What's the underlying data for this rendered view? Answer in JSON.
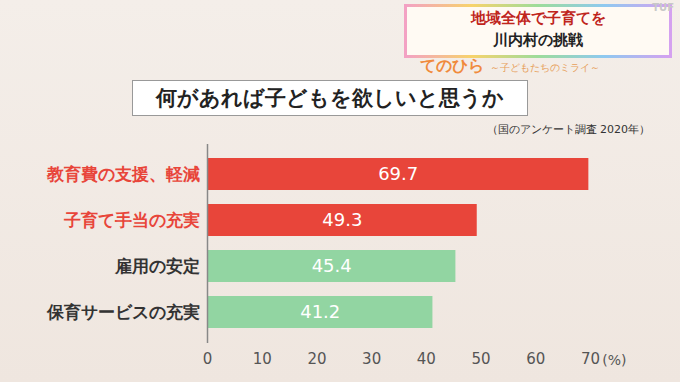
{
  "banner": [
    "地域全体で子育てを",
    "川内村の挑戦"
  ],
  "channel": "TUF",
  "logo": "てのひら",
  "logo_subtitle": "～子どもたちのミライ～",
  "chart_data": {
    "type": "bar",
    "orientation": "horizontal",
    "title": "何があれば子どもを欲しいと思うか",
    "subtitle": "（国のアンケート調査 2020年）",
    "categories": [
      "教育費の支援、軽減",
      "子育て手当の充実",
      "雇用の安定",
      "保育サービスの充実"
    ],
    "values": [
      69.7,
      49.3,
      45.4,
      41.2
    ],
    "colors": [
      "#e8453a",
      "#e8453a",
      "#92d5a2",
      "#92d5a2"
    ],
    "xlabel": "(%)",
    "xlim": [
      0,
      70
    ],
    "xticks": [
      0,
      10,
      20,
      30,
      40,
      50,
      60,
      70
    ],
    "grid": false,
    "data_labels": true
  }
}
